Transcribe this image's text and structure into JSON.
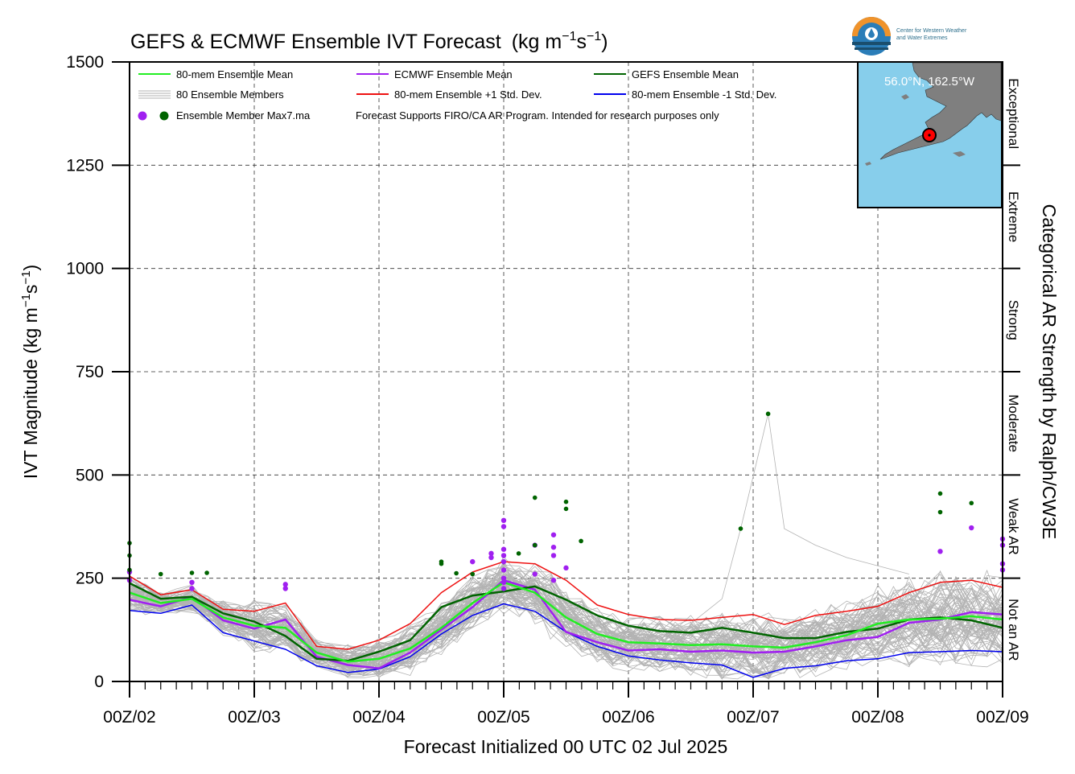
{
  "title": "GEFS & ECMWF Ensemble IVT Forecast",
  "title_units_prefix": "(kg m",
  "title_units_exp1": "−1",
  "title_units_mid": "s",
  "title_units_exp2": "−1",
  "title_units_suffix": ")",
  "logo": {
    "line1": "Center for Western Weather",
    "line2": "and Water Extremes",
    "colors": {
      "orange": "#f0932b",
      "blue": "#2a7db8",
      "dark": "#1a4e6e"
    }
  },
  "map_inset": {
    "location_label": "56.0°N, 162.5°W",
    "ocean_color": "#87ceeb",
    "land_color": "#7f7f7f",
    "marker_color": "#ff0000"
  },
  "legend": {
    "row1": [
      "80-mem Ensemble Mean",
      "ECMWF Ensemble Mean",
      "GEFS Ensemble Mean"
    ],
    "row2": [
      "80 Ensemble Members",
      "80-mem Ensemble +1 Std. Dev.",
      "80-mem Ensemble -1 Std. Dev."
    ],
    "row3_marker": "Ensemble Member Max7.ma",
    "row3_note": "Forecast Supports FIRO/CA AR Program. Intended for research purposes only"
  },
  "right_axis": {
    "title": "Categorical AR Strength by Ralph/CW3E",
    "categories": [
      "Exceptional",
      "Extreme",
      "Strong",
      "Moderate",
      "Weak AR",
      "Not an AR"
    ]
  },
  "y_axis": {
    "title_prefix": "IVT Magnitude (kg m",
    "title_exp1": "−1",
    "title_mid": "s",
    "title_exp2": "−1",
    "title_suffix": ")"
  },
  "x_axis": {
    "title": "Forecast Initialized 00 UTC 02 Jul 2025"
  },
  "chart_data": {
    "type": "line",
    "ylim": [
      0,
      1500
    ],
    "yticks": [
      0,
      250,
      500,
      750,
      1000,
      1250,
      1500
    ],
    "xlim": [
      0,
      7
    ],
    "xticks": [
      0,
      1,
      2,
      3,
      4,
      5,
      6,
      7
    ],
    "xticklabels": [
      "00Z/02",
      "00Z/03",
      "00Z/04",
      "00Z/05",
      "00Z/06",
      "00Z/07",
      "00Z/08",
      "00Z/09"
    ],
    "category_thresholds": [
      250,
      500,
      750,
      1000,
      1250
    ],
    "grid": true,
    "x": [
      0,
      0.25,
      0.5,
      0.75,
      1,
      1.25,
      1.5,
      1.75,
      2,
      2.25,
      2.5,
      2.75,
      3,
      3.25,
      3.5,
      3.75,
      4,
      4.25,
      4.5,
      4.75,
      5,
      5.25,
      5.5,
      5.75,
      6,
      6.25,
      6.5,
      6.75,
      7
    ],
    "series": [
      {
        "name": "80-mem Ensemble Mean",
        "color": "#22ee22",
        "width": 2.5,
        "values": [
          215,
          190,
          200,
          155,
          135,
          130,
          70,
          48,
          55,
          80,
          130,
          190,
          240,
          215,
          155,
          115,
          95,
          92,
          88,
          90,
          85,
          82,
          95,
          112,
          140,
          150,
          152,
          158,
          150
        ]
      },
      {
        "name": "ECMWF Ensemble Mean",
        "color": "#a020f0",
        "width": 2.5,
        "values": [
          198,
          182,
          205,
          148,
          128,
          150,
          60,
          40,
          32,
          70,
          125,
          180,
          245,
          222,
          120,
          95,
          75,
          78,
          72,
          75,
          70,
          72,
          85,
          100,
          108,
          142,
          150,
          168,
          162
        ]
      },
      {
        "name": "GEFS Ensemble Mean",
        "color": "#006400",
        "width": 2.5,
        "values": [
          238,
          200,
          205,
          165,
          145,
          110,
          55,
          50,
          72,
          100,
          180,
          208,
          218,
          230,
          198,
          160,
          135,
          122,
          118,
          130,
          118,
          105,
          105,
          120,
          128,
          150,
          155,
          148,
          130
        ]
      },
      {
        "name": "80-mem Ensemble +1 Std. Dev.",
        "color": "#ee1111",
        "width": 1.5,
        "values": [
          255,
          210,
          222,
          175,
          170,
          190,
          85,
          78,
          100,
          140,
          215,
          265,
          290,
          285,
          245,
          185,
          162,
          150,
          148,
          155,
          162,
          138,
          160,
          170,
          182,
          215,
          240,
          245,
          228
        ]
      },
      {
        "name": "80-mem Ensemble -1 Std. Dev.",
        "color": "#0000ee",
        "width": 1.5,
        "values": [
          172,
          165,
          185,
          118,
          98,
          78,
          38,
          22,
          30,
          60,
          115,
          160,
          188,
          170,
          120,
          85,
          62,
          52,
          45,
          40,
          10,
          32,
          38,
          50,
          55,
          70,
          72,
          75,
          72
        ]
      }
    ],
    "markers": {
      "ecmwf_max": {
        "color": "#a020f0",
        "points": [
          [
            0,
            245
          ],
          [
            0,
            265
          ],
          [
            0.5,
            225
          ],
          [
            0.5,
            240
          ],
          [
            1.25,
            225
          ],
          [
            1.25,
            235
          ],
          [
            2.75,
            290
          ],
          [
            2.9,
            310
          ],
          [
            2.9,
            300
          ],
          [
            3,
            390
          ],
          [
            3,
            375
          ],
          [
            3,
            320
          ],
          [
            3,
            305
          ],
          [
            3,
            290
          ],
          [
            3,
            270
          ],
          [
            3,
            250
          ],
          [
            3,
            240
          ],
          [
            3,
            225
          ],
          [
            3.25,
            260
          ],
          [
            3.25,
            330
          ],
          [
            3.4,
            325
          ],
          [
            3.4,
            355
          ],
          [
            3.4,
            305
          ],
          [
            3.4,
            245
          ],
          [
            3.5,
            275
          ],
          [
            6.5,
            315
          ],
          [
            6.75,
            372
          ],
          [
            7,
            345
          ],
          [
            7,
            285
          ],
          [
            7,
            330
          ],
          [
            7,
            270
          ]
        ]
      },
      "gefs_max": {
        "color": "#006400",
        "points": [
          [
            0,
            335
          ],
          [
            0,
            305
          ],
          [
            0,
            270
          ],
          [
            0.25,
            260
          ],
          [
            0.5,
            263
          ],
          [
            0.62,
            263
          ],
          [
            2.5,
            290
          ],
          [
            2.5,
            285
          ],
          [
            2.62,
            262
          ],
          [
            2.75,
            260
          ],
          [
            3.12,
            310
          ],
          [
            3.25,
            445
          ],
          [
            3.25,
            330
          ],
          [
            3.5,
            435
          ],
          [
            3.5,
            418
          ],
          [
            3.62,
            340
          ],
          [
            4.9,
            370
          ],
          [
            5.12,
            648
          ],
          [
            6.5,
            455
          ],
          [
            6.5,
            410
          ],
          [
            6.75,
            432
          ]
        ]
      }
    }
  }
}
